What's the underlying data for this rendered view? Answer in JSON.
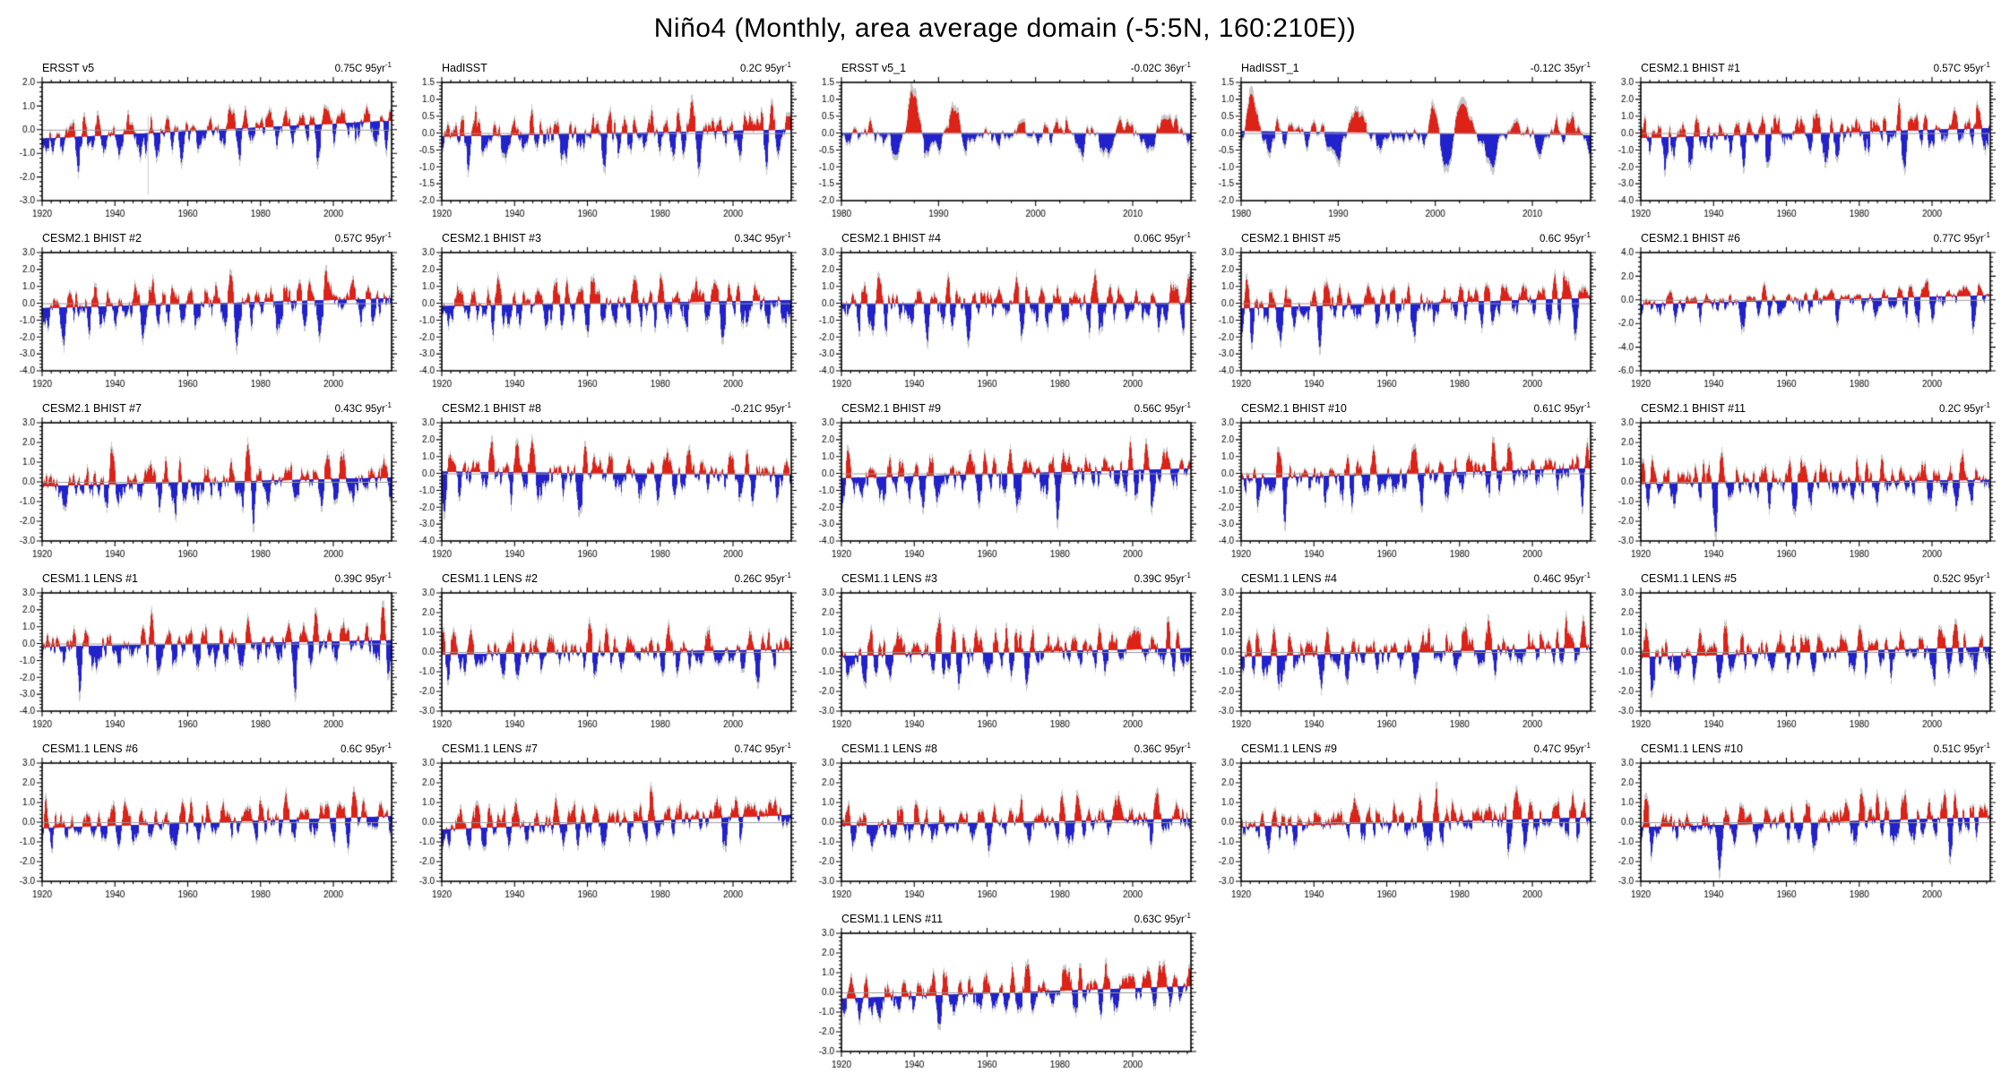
{
  "title": "Niño4 (Monthly, area average domain (-5:5N, 160:210E))",
  "chart_data": {
    "type": "bar",
    "description_fields": {
      "positive_anomaly_color": "#dd2217",
      "negative_anomaly_color": "#2222cc"
    },
    "colors": {
      "positive": "#dd2217",
      "negative": "#2222cc",
      "shadow": "#c8c8c8",
      "zero_line": "#999999",
      "axis": "#000000",
      "background": "#ffffff"
    },
    "trend_sup": "-1",
    "minor_x_step_years": 2.5,
    "minor_y_divisions": 5,
    "layout": {
      "columns": 5,
      "rows": 6,
      "last_panel_grid_column": 3
    },
    "panels": [
      {
        "title": "ERSST v5",
        "trend_label": "0.75C 95yr",
        "trend_c": 0.75,
        "trend_period": 95,
        "ylim": [
          -3,
          2
        ],
        "yticks": [
          2,
          1,
          0,
          -1,
          -2,
          -3
        ],
        "xlim": [
          1920,
          2016
        ],
        "xticks": [
          1920,
          1940,
          1960,
          1980,
          2000
        ],
        "synth": {
          "seed": 101,
          "amp": 0.8,
          "skew": 1.3
        },
        "artifact_year": 1949
      },
      {
        "title": "HadISST",
        "trend_label": "0.2C 95yr",
        "trend_c": 0.2,
        "trend_period": 95,
        "ylim": [
          -2,
          1.5
        ],
        "yticks": [
          1.5,
          1,
          0.5,
          0,
          -0.5,
          -1,
          -1.5,
          -2
        ],
        "xlim": [
          1920,
          2016
        ],
        "xticks": [
          1920,
          1940,
          1960,
          1980,
          2000
        ],
        "synth": {
          "seed": 102,
          "amp": 0.7,
          "skew": 1.0
        }
      },
      {
        "title": "ERSST v5_1",
        "trend_label": "-0.02C 36yr",
        "trend_c": -0.02,
        "trend_period": 36,
        "ylim": [
          -2,
          1.5
        ],
        "yticks": [
          1.5,
          1,
          0.5,
          0,
          -0.5,
          -1,
          -1.5,
          -2
        ],
        "xlim": [
          1980,
          2016
        ],
        "xticks": [
          1980,
          1990,
          2000,
          2010
        ],
        "synth": {
          "seed": 103,
          "amp": 0.75,
          "skew": 1.05
        }
      },
      {
        "title": "HadISST_1",
        "trend_label": "-0.12C 35yr",
        "trend_c": -0.12,
        "trend_period": 35,
        "ylim": [
          -2,
          1.5
        ],
        "yticks": [
          1.5,
          1,
          0.5,
          0,
          -0.5,
          -1,
          -1.5,
          -2
        ],
        "xlim": [
          1980,
          2016
        ],
        "xticks": [
          1980,
          1990,
          2000,
          2010
        ],
        "synth": {
          "seed": 104,
          "amp": 0.75,
          "skew": 1.05
        }
      },
      {
        "title": "CESM2.1 BHIST #1",
        "trend_label": "0.57C 95yr",
        "trend_c": 0.57,
        "trend_period": 95,
        "ylim": [
          -4,
          3
        ],
        "yticks": [
          3,
          2,
          1,
          0,
          -1,
          -2,
          -3,
          -4
        ],
        "xlim": [
          1920,
          2016
        ],
        "xticks": [
          1920,
          1940,
          1960,
          1980,
          2000
        ],
        "synth": {
          "seed": 105,
          "amp": 1.25,
          "skew": 1.35
        }
      },
      {
        "title": "CESM2.1 BHIST #2",
        "trend_label": "0.57C 95yr",
        "trend_c": 0.57,
        "trend_period": 95,
        "ylim": [
          -4,
          3
        ],
        "yticks": [
          3,
          2,
          1,
          0,
          -1,
          -2,
          -3,
          -4
        ],
        "xlim": [
          1920,
          2016
        ],
        "xticks": [
          1920,
          1940,
          1960,
          1980,
          2000
        ],
        "synth": {
          "seed": 106,
          "amp": 1.25,
          "skew": 1.35
        }
      },
      {
        "title": "CESM2.1 BHIST #3",
        "trend_label": "0.34C 95yr",
        "trend_c": 0.34,
        "trend_period": 95,
        "ylim": [
          -4,
          3
        ],
        "yticks": [
          3,
          2,
          1,
          0,
          -1,
          -2,
          -3,
          -4
        ],
        "xlim": [
          1920,
          2016
        ],
        "xticks": [
          1920,
          1940,
          1960,
          1980,
          2000
        ],
        "synth": {
          "seed": 107,
          "amp": 1.25,
          "skew": 1.35
        }
      },
      {
        "title": "CESM2.1 BHIST #4",
        "trend_label": "0.06C 95yr",
        "trend_c": 0.06,
        "trend_period": 95,
        "ylim": [
          -4,
          3
        ],
        "yticks": [
          3,
          2,
          1,
          0,
          -1,
          -2,
          -3,
          -4
        ],
        "xlim": [
          1920,
          2016
        ],
        "xticks": [
          1920,
          1940,
          1960,
          1980,
          2000
        ],
        "synth": {
          "seed": 108,
          "amp": 1.25,
          "skew": 1.35
        }
      },
      {
        "title": "CESM2.1 BHIST #5",
        "trend_label": "0.6C 95yr",
        "trend_c": 0.6,
        "trend_period": 95,
        "ylim": [
          -4,
          3
        ],
        "yticks": [
          3,
          2,
          1,
          0,
          -1,
          -2,
          -3,
          -4
        ],
        "xlim": [
          1920,
          2016
        ],
        "xticks": [
          1920,
          1940,
          1960,
          1980,
          2000
        ],
        "synth": {
          "seed": 109,
          "amp": 1.25,
          "skew": 1.35
        }
      },
      {
        "title": "CESM2.1 BHIST #6",
        "trend_label": "0.77C 95yr",
        "trend_c": 0.77,
        "trend_period": 95,
        "ylim": [
          -6,
          4
        ],
        "yticks": [
          4,
          2,
          0,
          -2,
          -4,
          -6
        ],
        "xlim": [
          1920,
          2016
        ],
        "xticks": [
          1920,
          1940,
          1960,
          1980,
          2000
        ],
        "synth": {
          "seed": 110,
          "amp": 0.9,
          "skew": 2.0
        }
      },
      {
        "title": "CESM2.1 BHIST #7",
        "trend_label": "0.43C 95yr",
        "trend_c": 0.43,
        "trend_period": 95,
        "ylim": [
          -3,
          3
        ],
        "yticks": [
          3,
          2,
          1,
          0,
          -1,
          -2,
          -3
        ],
        "xlim": [
          1920,
          2016
        ],
        "xticks": [
          1920,
          1940,
          1960,
          1980,
          2000
        ],
        "synth": {
          "seed": 111,
          "amp": 1.2,
          "skew": 1.1
        }
      },
      {
        "title": "CESM2.1 BHIST #8",
        "trend_label": "-0.21C 95yr",
        "trend_c": -0.21,
        "trend_period": 95,
        "ylim": [
          -4,
          3
        ],
        "yticks": [
          3,
          2,
          1,
          0,
          -1,
          -2,
          -3,
          -4
        ],
        "xlim": [
          1920,
          2016
        ],
        "xticks": [
          1920,
          1940,
          1960,
          1980,
          2000
        ],
        "synth": {
          "seed": 112,
          "amp": 1.25,
          "skew": 1.35
        }
      },
      {
        "title": "CESM2.1 BHIST #9",
        "trend_label": "0.56C 95yr",
        "trend_c": 0.56,
        "trend_period": 95,
        "ylim": [
          -4,
          3
        ],
        "yticks": [
          3,
          2,
          1,
          0,
          -1,
          -2,
          -3,
          -4
        ],
        "xlim": [
          1920,
          2016
        ],
        "xticks": [
          1920,
          1940,
          1960,
          1980,
          2000
        ],
        "synth": {
          "seed": 113,
          "amp": 1.25,
          "skew": 1.35
        }
      },
      {
        "title": "CESM2.1 BHIST #10",
        "trend_label": "0.61C 95yr",
        "trend_c": 0.61,
        "trend_period": 95,
        "ylim": [
          -4,
          3
        ],
        "yticks": [
          3,
          2,
          1,
          0,
          -1,
          -2,
          -3,
          -4
        ],
        "xlim": [
          1920,
          2016
        ],
        "xticks": [
          1920,
          1940,
          1960,
          1980,
          2000
        ],
        "synth": {
          "seed": 114,
          "amp": 1.25,
          "skew": 1.35
        }
      },
      {
        "title": "CESM2.1 BHIST #11",
        "trend_label": "0.2C 95yr",
        "trend_c": 0.2,
        "trend_period": 95,
        "ylim": [
          -3,
          3
        ],
        "yticks": [
          3,
          2,
          1,
          0,
          -1,
          -2,
          -3
        ],
        "xlim": [
          1920,
          2016
        ],
        "xticks": [
          1920,
          1940,
          1960,
          1980,
          2000
        ],
        "synth": {
          "seed": 115,
          "amp": 1.2,
          "skew": 1.1
        }
      },
      {
        "title": "CESM1.1 LENS #1",
        "trend_label": "0.39C 95yr",
        "trend_c": 0.39,
        "trend_period": 95,
        "ylim": [
          -4,
          3
        ],
        "yticks": [
          3,
          2,
          1,
          0,
          -1,
          -2,
          -3,
          -4
        ],
        "xlim": [
          1920,
          2016
        ],
        "xticks": [
          1920,
          1940,
          1960,
          1980,
          2000
        ],
        "synth": {
          "seed": 116,
          "amp": 1.25,
          "skew": 1.35
        }
      },
      {
        "title": "CESM1.1 LENS #2",
        "trend_label": "0.26C 95yr",
        "trend_c": 0.26,
        "trend_period": 95,
        "ylim": [
          -3,
          3
        ],
        "yticks": [
          3,
          2,
          1,
          0,
          -1,
          -2,
          -3
        ],
        "xlim": [
          1920,
          2016
        ],
        "xticks": [
          1920,
          1940,
          1960,
          1980,
          2000
        ],
        "synth": {
          "seed": 117,
          "amp": 1.15,
          "skew": 0.95
        }
      },
      {
        "title": "CESM1.1 LENS #3",
        "trend_label": "0.39C 95yr",
        "trend_c": 0.39,
        "trend_period": 95,
        "ylim": [
          -3,
          3
        ],
        "yticks": [
          3,
          2,
          1,
          0,
          -1,
          -2,
          -3
        ],
        "xlim": [
          1920,
          2016
        ],
        "xticks": [
          1920,
          1940,
          1960,
          1980,
          2000
        ],
        "synth": {
          "seed": 118,
          "amp": 1.15,
          "skew": 1.0
        }
      },
      {
        "title": "CESM1.1 LENS #4",
        "trend_label": "0.46C 95yr",
        "trend_c": 0.46,
        "trend_period": 95,
        "ylim": [
          -3,
          3
        ],
        "yticks": [
          3,
          2,
          1,
          0,
          -1,
          -2,
          -3
        ],
        "xlim": [
          1920,
          2016
        ],
        "xticks": [
          1920,
          1940,
          1960,
          1980,
          2000
        ],
        "synth": {
          "seed": 119,
          "amp": 1.18,
          "skew": 1.05
        }
      },
      {
        "title": "CESM1.1 LENS #5",
        "trend_label": "0.52C 95yr",
        "trend_c": 0.52,
        "trend_period": 95,
        "ylim": [
          -3,
          3
        ],
        "yticks": [
          3,
          2,
          1,
          0,
          -1,
          -2,
          -3
        ],
        "xlim": [
          1920,
          2016
        ],
        "xticks": [
          1920,
          1940,
          1960,
          1980,
          2000
        ],
        "synth": {
          "seed": 120,
          "amp": 1.18,
          "skew": 1.1
        }
      },
      {
        "title": "CESM1.1 LENS #6",
        "trend_label": "0.6C 95yr",
        "trend_c": 0.6,
        "trend_period": 95,
        "ylim": [
          -3,
          3
        ],
        "yticks": [
          3,
          2,
          1,
          0,
          -1,
          -2,
          -3
        ],
        "xlim": [
          1920,
          2016
        ],
        "xticks": [
          1920,
          1940,
          1960,
          1980,
          2000
        ],
        "synth": {
          "seed": 121,
          "amp": 1.15,
          "skew": 0.95
        }
      },
      {
        "title": "CESM1.1 LENS #7",
        "trend_label": "0.74C 95yr",
        "trend_c": 0.74,
        "trend_period": 95,
        "ylim": [
          -3,
          3
        ],
        "yticks": [
          3,
          2,
          1,
          0,
          -1,
          -2,
          -3
        ],
        "xlim": [
          1920,
          2016
        ],
        "xticks": [
          1920,
          1940,
          1960,
          1980,
          2000
        ],
        "synth": {
          "seed": 122,
          "amp": 1.15,
          "skew": 0.95
        }
      },
      {
        "title": "CESM1.1 LENS #8",
        "trend_label": "0.36C 95yr",
        "trend_c": 0.36,
        "trend_period": 95,
        "ylim": [
          -3,
          3
        ],
        "yticks": [
          3,
          2,
          1,
          0,
          -1,
          -2,
          -3
        ],
        "xlim": [
          1920,
          2016
        ],
        "xticks": [
          1920,
          1940,
          1960,
          1980,
          2000
        ],
        "synth": {
          "seed": 123,
          "amp": 1.15,
          "skew": 1.0
        }
      },
      {
        "title": "CESM1.1 LENS #9",
        "trend_label": "0.47C 95yr",
        "trend_c": 0.47,
        "trend_period": 95,
        "ylim": [
          -3,
          3
        ],
        "yticks": [
          3,
          2,
          1,
          0,
          -1,
          -2,
          -3
        ],
        "xlim": [
          1920,
          2016
        ],
        "xticks": [
          1920,
          1940,
          1960,
          1980,
          2000
        ],
        "synth": {
          "seed": 124,
          "amp": 1.18,
          "skew": 1.05
        }
      },
      {
        "title": "CESM1.1 LENS #10",
        "trend_label": "0.51C 95yr",
        "trend_c": 0.51,
        "trend_period": 95,
        "ylim": [
          -3,
          3
        ],
        "yticks": [
          3,
          2,
          1,
          0,
          -1,
          -2,
          -3
        ],
        "xlim": [
          1920,
          2016
        ],
        "xticks": [
          1920,
          1940,
          1960,
          1980,
          2000
        ],
        "synth": {
          "seed": 125,
          "amp": 1.18,
          "skew": 1.05
        }
      },
      {
        "title": "CESM1.1 LENS #11",
        "trend_label": "0.63C 95yr",
        "trend_c": 0.63,
        "trend_period": 95,
        "ylim": [
          -3,
          3
        ],
        "yticks": [
          3,
          2,
          1,
          0,
          -1,
          -2,
          -3
        ],
        "xlim": [
          1920,
          2016
        ],
        "xticks": [
          1920,
          1940,
          1960,
          1980,
          2000
        ],
        "synth": {
          "seed": 126,
          "amp": 1.18,
          "skew": 1.0
        }
      }
    ]
  }
}
